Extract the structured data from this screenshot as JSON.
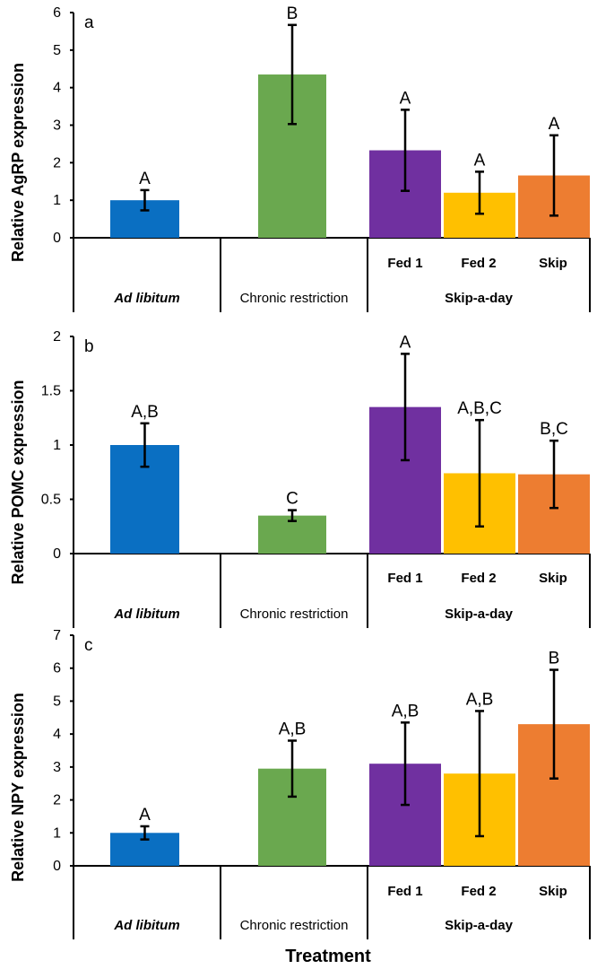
{
  "xlabel": "Treatment",
  "group_labels": {
    "ad_libitum": "Ad libitum",
    "chronic": "Chronic  restriction",
    "skip": "Skip-a-day"
  },
  "colors": [
    "#0a6fc2",
    "#6aa84f",
    "#7030a0",
    "#ffc000",
    "#ed7d31"
  ],
  "chart_data": [
    {
      "type": "bar",
      "panel": "a",
      "ylabel": "Relative AgRP expression",
      "ylim": [
        0,
        6
      ],
      "yticks": [
        "0",
        "1",
        "2",
        "3",
        "4",
        "5",
        "6"
      ],
      "ytick_values": [
        0,
        1,
        2,
        3,
        4,
        5,
        6
      ],
      "categories": [
        "Ad libitum",
        "Chronic restriction",
        "Fed  1",
        "Fed  2",
        "Skip"
      ],
      "values": [
        1.0,
        4.35,
        2.33,
        1.2,
        1.66
      ],
      "errors": [
        0.27,
        1.32,
        1.08,
        0.56,
        1.07
      ],
      "letters": [
        "A",
        "B",
        "A",
        "A",
        "A"
      ]
    },
    {
      "type": "bar",
      "panel": "b",
      "ylabel": "Relative POMC expression",
      "ylim": [
        0,
        2
      ],
      "yticks": [
        "0",
        "0.5",
        "1",
        "1.5",
        "2"
      ],
      "ytick_values": [
        0,
        0.5,
        1,
        1.5,
        2
      ],
      "categories": [
        "Ad libitum",
        "Chronic restriction",
        "Fed  1",
        "Fed  2",
        "Skip"
      ],
      "values": [
        1.0,
        0.35,
        1.35,
        0.74,
        0.73
      ],
      "errors": [
        0.2,
        0.05,
        0.49,
        0.49,
        0.31
      ],
      "letters": [
        "A,B",
        "C",
        "A",
        "A,B,C",
        "B,C"
      ]
    },
    {
      "type": "bar",
      "panel": "c",
      "ylabel": "Relative NPY expression",
      "ylim": [
        0,
        7
      ],
      "yticks": [
        "0",
        "1",
        "2",
        "3",
        "4",
        "5",
        "6",
        "7"
      ],
      "ytick_values": [
        0,
        1,
        2,
        3,
        4,
        5,
        6,
        7
      ],
      "categories": [
        "Ad libitum",
        "Chronic restriction",
        "Fed  1",
        "Fed  2",
        "Skip"
      ],
      "values": [
        1.0,
        2.95,
        3.1,
        2.8,
        4.3
      ],
      "errors": [
        0.2,
        0.85,
        1.25,
        1.9,
        1.65
      ],
      "letters": [
        "A",
        "A,B",
        "A,B",
        "A,B",
        "B"
      ]
    }
  ]
}
